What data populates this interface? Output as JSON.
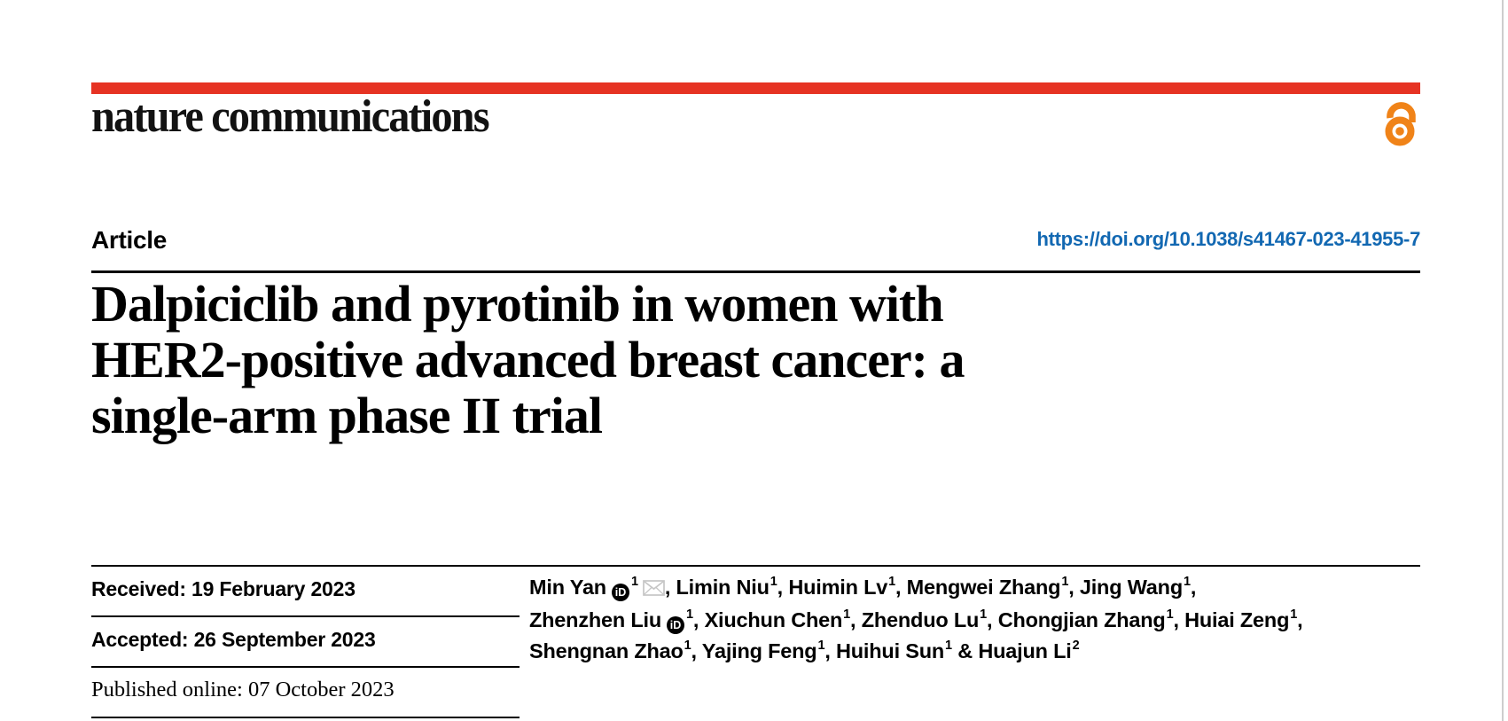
{
  "journal": {
    "logo_text": "nature communications"
  },
  "colors": {
    "accent_red": "#e63323",
    "link_blue": "#1268b2",
    "open_access_orange": "#f08318",
    "rule_black": "#000000",
    "page_edge_gray": "#cdcdcd",
    "envelope_gray": "#c6c6c6"
  },
  "icons": {
    "open_access": "open-access-padlock-icon",
    "orcid": "orcid-id-icon",
    "orcid_glyph": "iD",
    "email": "envelope-icon"
  },
  "header": {
    "article_label": "Article",
    "doi": "https://doi.org/10.1038/s41467-023-41955-7"
  },
  "title": {
    "lines": [
      "Dalpiciclib and pyrotinib in women with",
      "HER2-positive advanced breast cancer: a",
      "single-arm phase II trial"
    ]
  },
  "history": [
    {
      "text": "Received: 19 February 2023"
    },
    {
      "text": "Accepted: 26 September 2023"
    },
    {
      "text": "Published online: 07 October 2023"
    }
  ],
  "authors": {
    "lines": [
      {
        "items": [
          {
            "pre": "",
            "name": "Min Yan",
            "orcid": true,
            "sup": "1",
            "email": true
          },
          {
            "pre": ", ",
            "name": "Limin Niu",
            "sup": "1"
          },
          {
            "pre": ", ",
            "name": "Huimin Lv",
            "sup": "1"
          },
          {
            "pre": ", ",
            "name": "Mengwei Zhang",
            "sup": "1"
          },
          {
            "pre": ", ",
            "name": "Jing Wang",
            "sup": "1"
          }
        ],
        "trail": ","
      },
      {
        "items": [
          {
            "pre": "",
            "name": "Zhenzhen Liu",
            "orcid": true,
            "sup": "1"
          },
          {
            "pre": ", ",
            "name": "Xiuchun Chen",
            "sup": "1"
          },
          {
            "pre": ", ",
            "name": "Zhenduo Lu",
            "sup": "1"
          },
          {
            "pre": ", ",
            "name": "Chongjian Zhang",
            "sup": "1"
          },
          {
            "pre": ", ",
            "name": "Huiai Zeng",
            "sup": "1"
          }
        ],
        "trail": ","
      },
      {
        "items": [
          {
            "pre": "",
            "name": "Shengnan Zhao",
            "sup": "1"
          },
          {
            "pre": ", ",
            "name": "Yajing Feng",
            "sup": "1"
          },
          {
            "pre": ", ",
            "name": "Huihui Sun",
            "sup": "1"
          },
          {
            "pre": " & ",
            "name": "Huajun Li",
            "sup": "2"
          }
        ],
        "trail": ""
      }
    ]
  }
}
